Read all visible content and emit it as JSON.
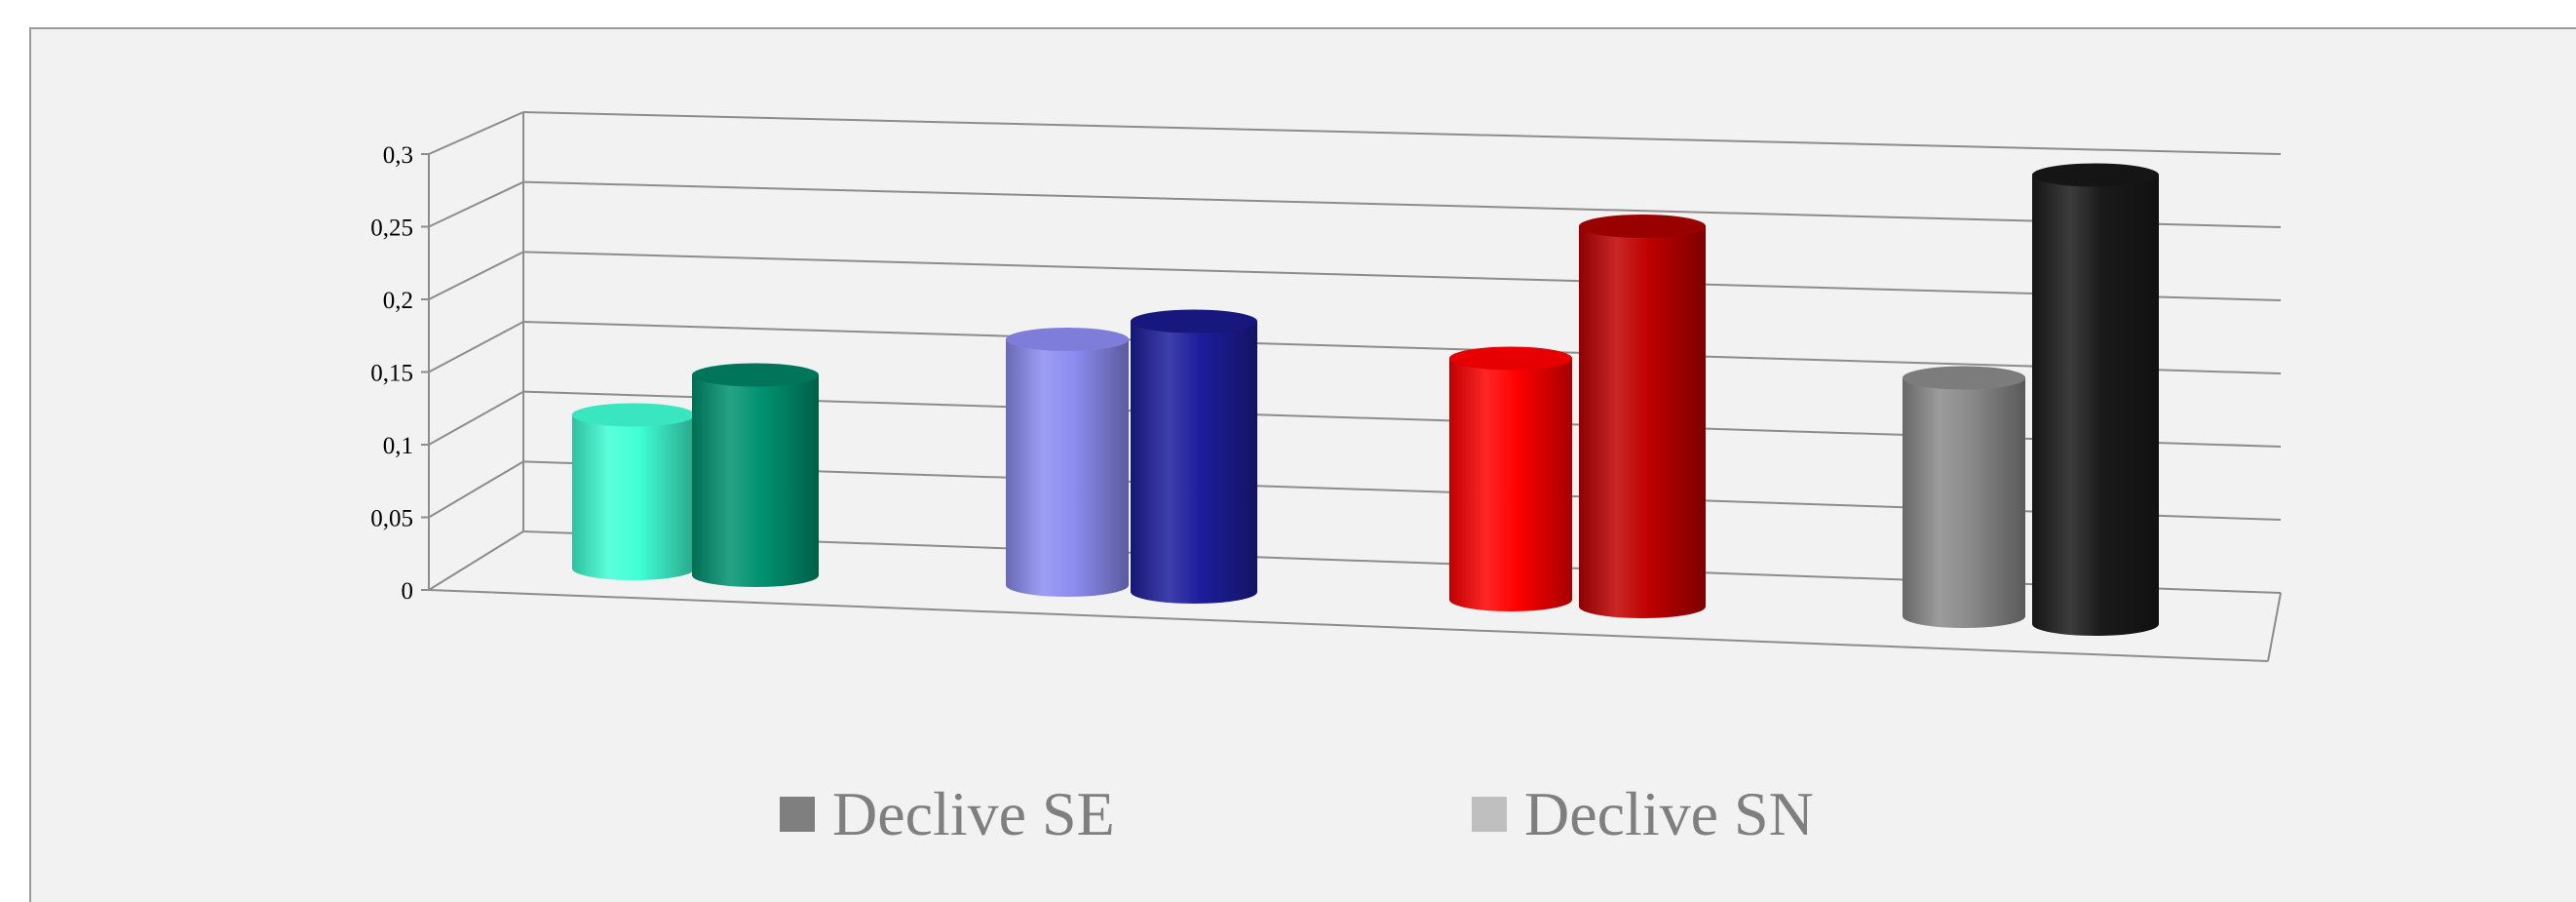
{
  "chart_data": {
    "type": "bar",
    "style": "3d-cylinder",
    "categories": [
      "",
      "",
      "",
      ""
    ],
    "series": [
      {
        "name": "Declive SE",
        "values": [
          0.105,
          0.168,
          0.165,
          0.163
        ]
      },
      {
        "name": "Declive SN",
        "values": [
          0.137,
          0.185,
          0.26,
          0.307
        ]
      }
    ],
    "bar_colors": [
      {
        "light": "#3fffd4",
        "dark": "#009270"
      },
      {
        "light": "#8c8cf2",
        "dark": "#1d1d9c"
      },
      {
        "light": "#ff0000",
        "dark": "#bf0000"
      },
      {
        "light": "#8a8a8a",
        "dark": "#1a1a1a"
      }
    ],
    "yticks": [
      "0",
      "0,05",
      "0,1",
      "0,15",
      "0,2",
      "0,25",
      "0,3"
    ],
    "ylim": [
      0,
      0.3
    ],
    "grid": true,
    "legend_position": "bottom",
    "title": "",
    "xlabel": "",
    "ylabel": ""
  },
  "legend": {
    "items": [
      {
        "label": "Declive SE",
        "color": "#7f7f7f"
      },
      {
        "label": "Declive SN",
        "color": "#bfbfbf"
      }
    ]
  }
}
